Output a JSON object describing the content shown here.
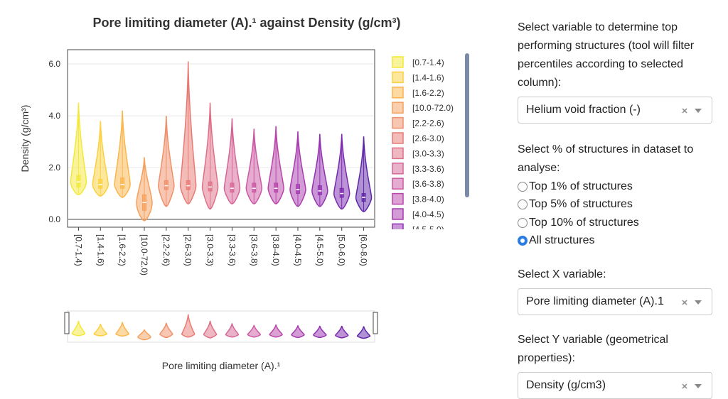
{
  "chart_data": {
    "type": "violin",
    "title": "Pore limiting diameter (A).¹ against Density (g/cm³)",
    "x_label": "Pore limiting diameter (A).¹",
    "y_label": "Density (g/cm³)",
    "ylim": [
      -0.3,
      6.55
    ],
    "yticks": [
      {
        "value": 0,
        "label": "0.0"
      },
      {
        "value": 2,
        "label": "2.0"
      },
      {
        "value": 4,
        "label": "4.0"
      },
      {
        "value": 6,
        "label": "6.0"
      }
    ],
    "grid": true,
    "legend": "right",
    "series": [
      {
        "name": "[0.7-1.4)",
        "color": "#f3e838",
        "min": 0.95,
        "q1": 1.25,
        "median": 1.45,
        "q3": 1.7,
        "max": 4.5
      },
      {
        "name": "[1.4-1.6)",
        "color": "#fbd03c",
        "min": 0.9,
        "q1": 1.2,
        "median": 1.35,
        "q3": 1.55,
        "max": 3.8
      },
      {
        "name": "[1.6-2.2)",
        "color": "#fbb54a",
        "min": 0.85,
        "q1": 1.2,
        "median": 1.35,
        "q3": 1.6,
        "max": 4.2
      },
      {
        "name": "[10.0-72.0)",
        "color": "#f6a05c",
        "min": -0.05,
        "q1": 0.35,
        "median": 0.65,
        "q3": 0.95,
        "max": 2.4
      },
      {
        "name": "[2.2-2.6)",
        "color": "#f08f6a",
        "min": 0.5,
        "q1": 1.15,
        "median": 1.3,
        "q3": 1.5,
        "max": 4.0
      },
      {
        "name": "[2.6-3.0)",
        "color": "#e87a72",
        "min": 0.6,
        "q1": 1.15,
        "median": 1.3,
        "q3": 1.5,
        "max": 6.1
      },
      {
        "name": "[3.0-3.3)",
        "color": "#df6f86",
        "min": 0.4,
        "q1": 1.1,
        "median": 1.25,
        "q3": 1.45,
        "max": 4.5
      },
      {
        "name": "[3.3-3.6)",
        "color": "#d66596",
        "min": 0.6,
        "q1": 1.05,
        "median": 1.2,
        "q3": 1.4,
        "max": 3.9
      },
      {
        "name": "[3.6-3.8)",
        "color": "#cb58a2",
        "min": 0.6,
        "q1": 1.05,
        "median": 1.2,
        "q3": 1.4,
        "max": 3.5
      },
      {
        "name": "[3.8-4.0)",
        "color": "#ba45aa",
        "min": 0.6,
        "q1": 1.05,
        "median": 1.2,
        "q3": 1.4,
        "max": 3.6
      },
      {
        "name": "[4.0-4.5)",
        "color": "#a73aaf",
        "min": 0.5,
        "q1": 1.0,
        "median": 1.15,
        "q3": 1.35,
        "max": 3.4
      },
      {
        "name": "[4.5-5.0)",
        "color": "#9330b1",
        "min": 0.5,
        "q1": 0.95,
        "median": 1.1,
        "q3": 1.3,
        "max": 3.3
      },
      {
        "name": "[5.0-6.0)",
        "color": "#7a28ae",
        "min": 0.4,
        "q1": 0.85,
        "median": 1.0,
        "q3": 1.2,
        "max": 3.3
      },
      {
        "name": "[6.0-8.0)",
        "color": "#5e25a8",
        "min": 0.3,
        "q1": 0.7,
        "median": 0.85,
        "q3": 1.0,
        "max": 3.2
      }
    ]
  },
  "controls": {
    "filter_label": "Select variable to determine top performing structures (tool will filter percentiles according to selected column):",
    "filter_value": "Helium void fraction (-)",
    "percent_label": "Select % of structures in dataset to analyse:",
    "percent_options": [
      "Top 1% of structures",
      "Top 5% of structures",
      "Top 10% of structures",
      "All structures"
    ],
    "percent_selected": 3,
    "x_label": "Select X variable:",
    "x_value": "Pore limiting diameter (A).1",
    "y_label": "Select Y variable (geometrical properties):",
    "y_value": "Density (g/cm3)"
  }
}
